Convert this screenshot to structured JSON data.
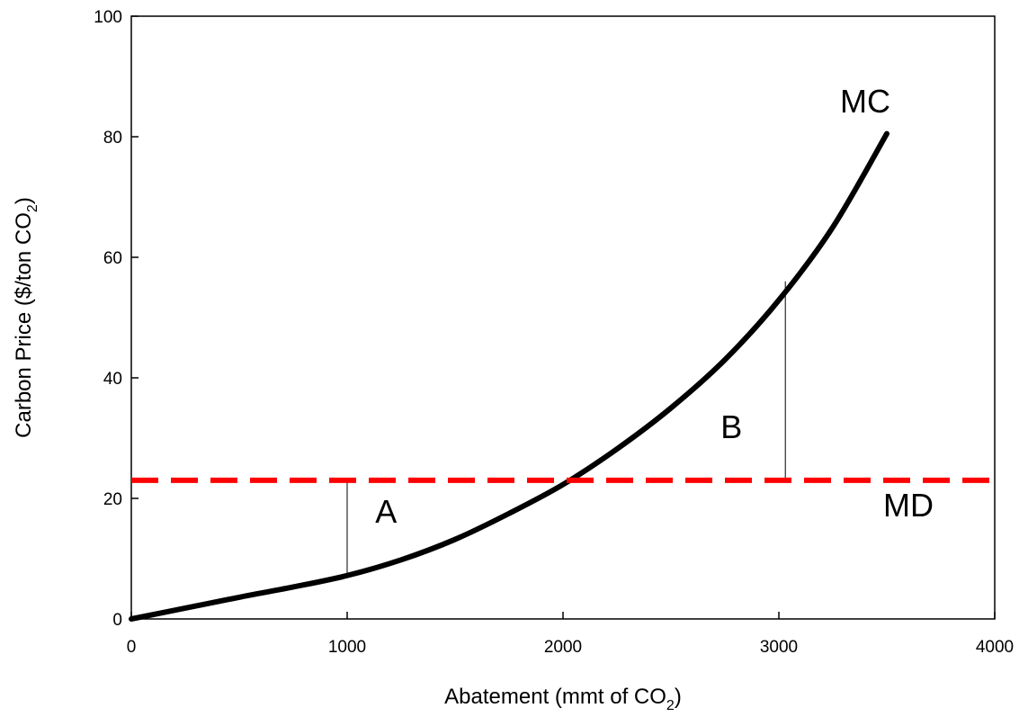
{
  "chart_data": {
    "type": "line",
    "title": "",
    "xlabel": {
      "main": "Abatement (mmt of CO",
      "sub": "2",
      "tail": ")"
    },
    "ylabel": {
      "main": "Carbon Price ($/ton CO",
      "sub": "2",
      "tail": ")"
    },
    "xlim": [
      0,
      4000
    ],
    "ylim": [
      0,
      100
    ],
    "xticks": [
      0,
      1000,
      2000,
      3000,
      4000
    ],
    "yticks": [
      0,
      20,
      40,
      60,
      80,
      100
    ],
    "grid": false,
    "series": [
      {
        "name": "MC",
        "color": "#000000",
        "style": "solid",
        "x": [
          0,
          250,
          500,
          750,
          1000,
          1250,
          1500,
          1750,
          2000,
          2250,
          2500,
          2750,
          3000,
          3250,
          3500
        ],
        "y": [
          0,
          1.8,
          3.6,
          5.3,
          7.2,
          9.8,
          13.2,
          17.5,
          22.3,
          28.2,
          35.0,
          43.0,
          52.9,
          65.0,
          80.5
        ]
      },
      {
        "name": "MD",
        "color": "#ff0000",
        "style": "dashed",
        "x": [
          0,
          4000
        ],
        "y": [
          23,
          23
        ]
      }
    ],
    "annotations": [
      {
        "text": "MC",
        "x": 3400,
        "y": 84
      },
      {
        "text": "MD",
        "x": 3600,
        "y": 17
      },
      {
        "text": "A",
        "x": 1180,
        "y": 16
      },
      {
        "text": "B",
        "x": 2780,
        "y": 30
      }
    ],
    "reference_lines": [
      {
        "x": 1000,
        "y_from": 7.2,
        "y_to": 23
      },
      {
        "x": 3030,
        "y_from": 23,
        "y_to": 56
      }
    ]
  }
}
